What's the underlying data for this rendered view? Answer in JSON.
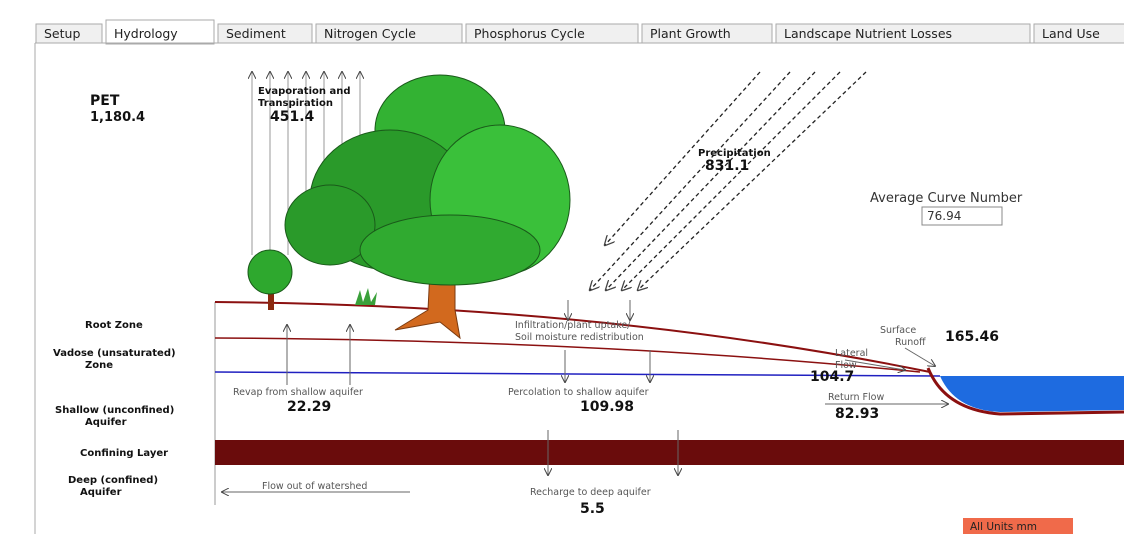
{
  "tabs": [
    "Setup",
    "Hydrology",
    "Sediment",
    "Nitrogen Cycle",
    "Phosphorus Cycle",
    "Plant Growth",
    "Landscape Nutrient Losses",
    "Land Use"
  ],
  "active_tab": 1,
  "pet": {
    "label": "PET",
    "value": "1,180.4"
  },
  "evapotranspiration": {
    "label": [
      "Evaporation and",
      "Transpiration"
    ],
    "value": "451.4"
  },
  "precipitation": {
    "label": "Precipitation",
    "value": "831.1"
  },
  "curve_number": {
    "label": "Average Curve Number",
    "value": "76.94"
  },
  "layers": {
    "root_zone": [
      "Root Zone"
    ],
    "vadose": [
      "Vadose (unsaturated)",
      "Zone"
    ],
    "shallow": [
      "Shallow (unconfined)",
      "Aquifer"
    ],
    "confining": [
      "Confining Layer"
    ],
    "deep": [
      "Deep (confined)",
      "Aquifer"
    ]
  },
  "infiltration": [
    "Infiltration/plant uptake/",
    "Soil moisture redistribution"
  ],
  "surface_runoff": {
    "label": [
      "Surface",
      "Runoff"
    ],
    "value": "165.46"
  },
  "lateral_flow": {
    "label": [
      "Lateral",
      "Flow"
    ],
    "value": "104.7"
  },
  "return_flow": {
    "label": "Return Flow",
    "value": "82.93"
  },
  "revap": {
    "label": "Revap from shallow aquifer",
    "value": "22.29"
  },
  "percolation": {
    "label": "Percolation to shallow aquifer",
    "value": "109.98"
  },
  "flow_out": "Flow out of watershed",
  "recharge": {
    "label": "Recharge to deep aquifer",
    "value": "5.5"
  },
  "units": "All Units mm"
}
